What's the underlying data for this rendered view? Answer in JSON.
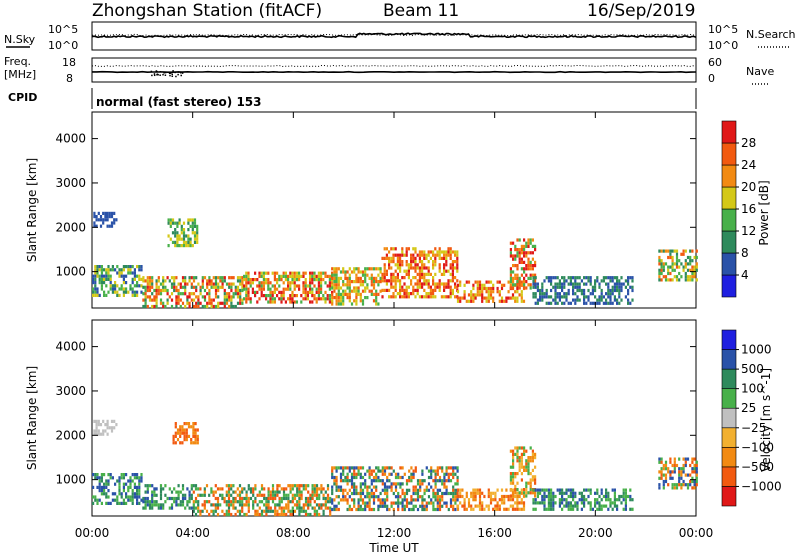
{
  "header": {
    "station": "Zhongshan Station (fitACF)",
    "beam": "Beam 11",
    "date": "16/Sep/2019"
  },
  "strip_labels": {
    "nsky": "N.Sky",
    "freq_line1": "Freq.",
    "freq_line2": "[MHz]",
    "cpid": "CPID",
    "nsearch": "N.Search",
    "nave": "Nave",
    "nsky_left_top": "10^5",
    "nsky_left_bottom": "10^0",
    "nsky_right_top": "10^5",
    "nsky_right_bottom": "10^0",
    "freq_top": "18",
    "freq_bottom": "8",
    "nave_top": "60",
    "nave_bottom": "0",
    "cpid_text": "normal (fast stereo) 153"
  },
  "x_axis": {
    "label": "Time UT",
    "ticks": [
      "00:00",
      "04:00",
      "08:00",
      "12:00",
      "16:00",
      "20:00",
      "00:00"
    ]
  },
  "colors": {
    "power": [
      "#1f1fe0",
      "#2a52a8",
      "#2e8a5c",
      "#48b04a",
      "#d4c818",
      "#f28a12",
      "#f25a10",
      "#e01818"
    ],
    "velocity": [
      "#e01818",
      "#f25a10",
      "#f28a12",
      "#f2b030",
      "#c0c0c0",
      "#48b04a",
      "#2e8a5c",
      "#2a52a8",
      "#1f1fe0"
    ]
  },
  "chart_data": [
    {
      "type": "heatmap",
      "quantity": "power",
      "ylabel": "Slant Range [km]",
      "yticks": [
        1000,
        2000,
        3000,
        4000
      ],
      "ylim": [
        180,
        4600
      ],
      "xlim_hours": [
        0,
        24
      ],
      "colorbar": {
        "label": "Power [dB]",
        "ticks": [
          "4",
          "8",
          "12",
          "16",
          "20",
          "24",
          "28"
        ],
        "range": [
          0,
          32
        ]
      },
      "regions": [
        {
          "t0": 0.0,
          "t1": 2.0,
          "r0": 500,
          "r1": 1150,
          "levels": [
            1,
            2,
            3,
            4
          ]
        },
        {
          "t0": 0.05,
          "t1": 1.0,
          "r0": 2050,
          "r1": 2350,
          "levels": [
            1
          ]
        },
        {
          "t0": 2.0,
          "t1": 6.0,
          "r0": 250,
          "r1": 900,
          "levels": [
            2,
            3,
            4,
            5,
            6,
            7
          ]
        },
        {
          "t0": 6.0,
          "t1": 9.5,
          "r0": 350,
          "r1": 1000,
          "levels": [
            3,
            4,
            5,
            6,
            7
          ]
        },
        {
          "t0": 9.5,
          "t1": 11.5,
          "r0": 300,
          "r1": 1100,
          "levels": [
            3,
            4,
            5,
            6
          ]
        },
        {
          "t0": 11.5,
          "t1": 14.5,
          "r0": 400,
          "r1": 1550,
          "levels": [
            4,
            5,
            6,
            7
          ]
        },
        {
          "t0": 14.5,
          "t1": 17.2,
          "r0": 300,
          "r1": 800,
          "levels": [
            4,
            5,
            6,
            7
          ]
        },
        {
          "t0": 16.6,
          "t1": 17.6,
          "r0": 600,
          "r1": 1750,
          "levels": [
            3,
            5,
            6,
            7
          ]
        },
        {
          "t0": 17.5,
          "t1": 21.5,
          "r0": 300,
          "r1": 900,
          "levels": [
            1,
            2
          ]
        },
        {
          "t0": 22.5,
          "t1": 24.0,
          "r0": 800,
          "r1": 1500,
          "levels": [
            2,
            3,
            4,
            5,
            6
          ]
        },
        {
          "t0": 3.0,
          "t1": 4.2,
          "r0": 1600,
          "r1": 2200,
          "levels": [
            2,
            3,
            4
          ]
        }
      ]
    },
    {
      "type": "heatmap",
      "quantity": "velocity",
      "ylabel": "Slant Range [km]",
      "yticks": [
        1000,
        2000,
        3000,
        4000
      ],
      "ylim": [
        180,
        4600
      ],
      "xlim_hours": [
        0,
        24
      ],
      "colorbar": {
        "label": "Velocity [m s^-1]",
        "ticks": [
          "1000",
          "500",
          "100",
          "25",
          "−25",
          "−100",
          "−500",
          "−1000"
        ]
      },
      "regions": [
        {
          "t0": 0.0,
          "t1": 2.0,
          "r0": 500,
          "r1": 1150,
          "levels": [
            5,
            6,
            7
          ]
        },
        {
          "t0": 0.05,
          "t1": 1.0,
          "r0": 2050,
          "r1": 2350,
          "levels": [
            4
          ]
        },
        {
          "t0": 3.2,
          "t1": 4.2,
          "r0": 1800,
          "r1": 2300,
          "levels": [
            1,
            2
          ]
        },
        {
          "t0": 2.0,
          "t1": 4.0,
          "r0": 350,
          "r1": 900,
          "levels": [
            5,
            6,
            7
          ]
        },
        {
          "t0": 4.0,
          "t1": 9.5,
          "r0": 250,
          "r1": 900,
          "levels": [
            1,
            2,
            5,
            6
          ]
        },
        {
          "t0": 9.5,
          "t1": 14.5,
          "r0": 300,
          "r1": 1300,
          "levels": [
            1,
            2,
            5,
            6,
            7
          ]
        },
        {
          "t0": 14.5,
          "t1": 17.2,
          "r0": 300,
          "r1": 800,
          "levels": [
            1,
            2,
            3
          ]
        },
        {
          "t0": 16.6,
          "t1": 17.6,
          "r0": 600,
          "r1": 1750,
          "levels": [
            1,
            2,
            3,
            5
          ]
        },
        {
          "t0": 17.5,
          "t1": 21.5,
          "r0": 300,
          "r1": 800,
          "levels": [
            5,
            6,
            7
          ]
        },
        {
          "t0": 22.5,
          "t1": 24.0,
          "r0": 800,
          "r1": 1500,
          "levels": [
            1,
            2,
            5,
            7
          ]
        }
      ]
    }
  ]
}
